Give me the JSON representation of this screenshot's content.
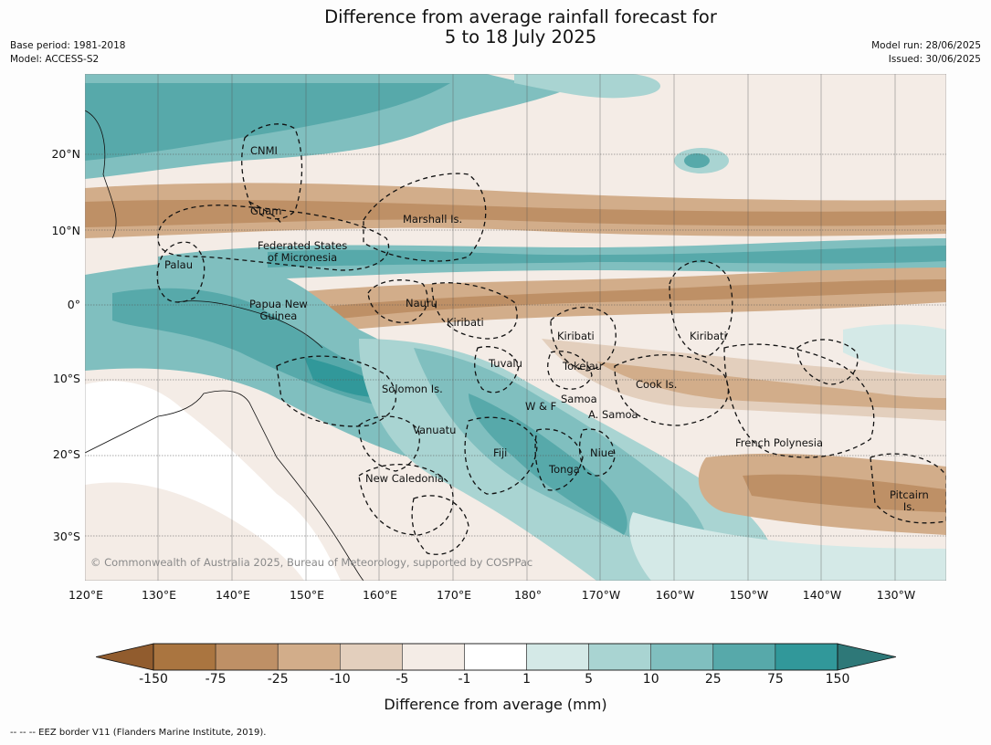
{
  "title": {
    "line1": "Difference from average rainfall forecast for",
    "line2": "5 to 18 July 2025"
  },
  "meta": {
    "base_period": "Base period: 1981-2018",
    "model": "Model: ACCESS-S2",
    "model_run": "Model run: 28/06/2025",
    "issued": "Issued: 30/06/2025"
  },
  "latitudes": [
    "20°N",
    "10°N",
    "0°",
    "10°S",
    "20°S",
    "30°S"
  ],
  "longitudes": [
    "120°E",
    "130°E",
    "140°E",
    "150°E",
    "160°E",
    "170°E",
    "180°",
    "170°W",
    "160°W",
    "150°W",
    "140°W",
    "130°W"
  ],
  "regions": {
    "cnmi": "CNMI",
    "guam": "Guam",
    "marshall": "Marshall Is.",
    "fsm_1": "Federated States",
    "fsm_2": "of Micronesia",
    "palau": "Palau",
    "nauru": "Nauru",
    "png_1": "Papua New",
    "png_2": "Guinea",
    "kiribati_w": "Kiribati",
    "kiribati_c": "Kiribati",
    "kiribati_e": "Kiribati",
    "tuvalu": "Tuvalu",
    "tokelau": "Tokelau",
    "cook": "Cook Is.",
    "solomon": "Solomon Is.",
    "samoa": "Samoa",
    "wf": "W & F",
    "asamoa": "A. Samoa",
    "vanuatu": "Vanuatu",
    "fiji": "Fiji",
    "niue": "Niue",
    "tonga": "Tonga",
    "french_poly": "French Polynesia",
    "new_caledonia": "New Caledonia",
    "pitcairn_1": "Pitcairn",
    "pitcairn_2": "Is."
  },
  "copyright": "© Commonwealth of Australia 2025, Bureau of Meteorology, supported by COSPPac",
  "colorbar": {
    "ticks": [
      "-150",
      "-75",
      "-25",
      "-10",
      "-5",
      "-1",
      "1",
      "5",
      "10",
      "25",
      "75",
      "150"
    ],
    "colors": [
      "#915c2e",
      "#aa7540",
      "#be9066",
      "#d2ad8a",
      "#e3cfbd",
      "#f4ece6",
      "#ffffff",
      "#d4e9e7",
      "#a9d4d2",
      "#80bfbf",
      "#57a9aa",
      "#31989a",
      "#2e7878"
    ],
    "label": "Difference from average (mm)"
  },
  "footnote": "--  --  -- EEZ border V11 (Flanders Marine Institute, 2019)."
}
